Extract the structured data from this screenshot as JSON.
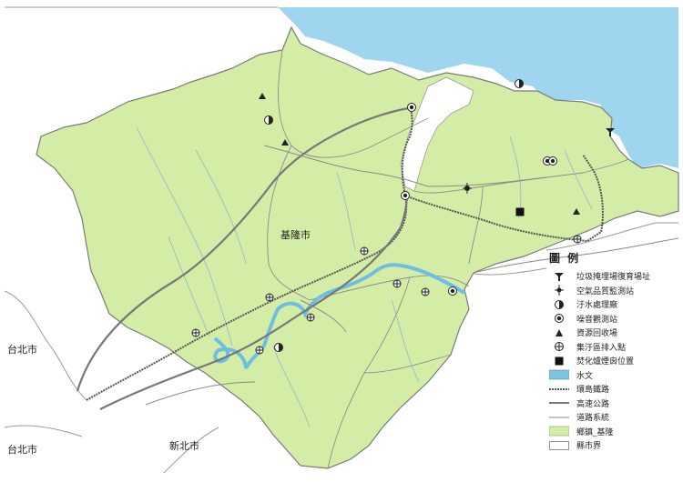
{
  "map": {
    "city_label": "基隆市",
    "neighbors": [
      "台北市",
      "台北市",
      "新北市"
    ],
    "colors": {
      "sea": "#9fd5ee",
      "land": "#d4eda6",
      "river": "#7cc4e1",
      "boundary": "#7a7a7a"
    }
  },
  "legend": {
    "title": "圖 例",
    "items": [
      {
        "label": "垃圾掩埋場復育場址",
        "icon": "landfill-icon"
      },
      {
        "label": "空氣品質監測站",
        "icon": "air-monitor-icon"
      },
      {
        "label": "汙水處理廠",
        "icon": "sewage-plant-icon"
      },
      {
        "label": "噪音觀測站",
        "icon": "noise-station-icon"
      },
      {
        "label": "資源回收場",
        "icon": "recycling-icon"
      },
      {
        "label": "集汙區排入點",
        "icon": "discharge-point-icon"
      },
      {
        "label": "焚化爐煙囪位置",
        "icon": "incinerator-icon"
      },
      {
        "label": "水文",
        "icon": "hydrology-swatch"
      },
      {
        "label": "環島鐵路",
        "icon": "railway-line"
      },
      {
        "label": "高速公路",
        "icon": "freeway-line"
      },
      {
        "label": "道路系統",
        "icon": "road-line"
      },
      {
        "label": "鄉鎮_基隆",
        "icon": "township-swatch"
      },
      {
        "label": "縣市界",
        "icon": "county-boundary-swatch"
      }
    ]
  }
}
